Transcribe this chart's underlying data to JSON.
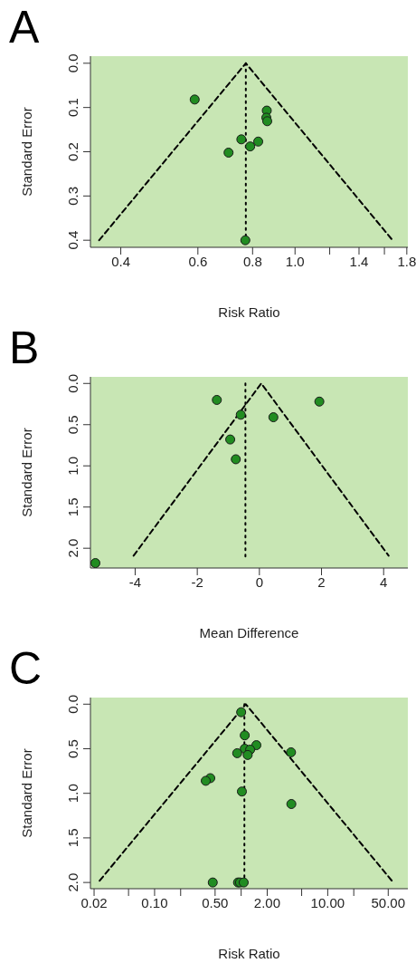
{
  "chart_data": [
    {
      "type": "scatter",
      "title": "A",
      "xlabel": "Risk Ratio",
      "ylabel": "Standard Error",
      "log": "x",
      "marker": "circle",
      "grid": false,
      "xlim": [
        0.341,
        1.81
      ],
      "ylim": [
        0.416,
        -0.016
      ],
      "xticks": [
        0.4,
        0.6,
        0.8,
        {
          "value": 1,
          "label": "1.0"
        },
        {
          "value": 1.2,
          "label": null
        },
        1.4,
        {
          "value": 1.6,
          "label": null
        },
        1.8
      ],
      "yticks": [
        {
          "value": 0,
          "label": "0.0"
        },
        0.1,
        0.2,
        0.3,
        0.4
      ],
      "series": [
        {
          "type": "line",
          "marker": "none",
          "color": "#000000",
          "line_style": "dashed",
          "x": [
            0.357,
            0.772,
            1.67
          ],
          "values": [
            0.4,
            0,
            0.4
          ]
        },
        {
          "type": "line",
          "marker": "none",
          "color": "#000000",
          "line_style": "dotted",
          "x": [
            0.772,
            0.772
          ],
          "values": [
            0,
            0.4
          ]
        },
        {
          "color": "#218c21",
          "x": [
            0.59,
            0.862,
            0.86,
            0.864,
            0.754,
            0.824,
            0.79,
            0.705,
            0.77
          ],
          "values": [
            0.082,
            0.107,
            0.123,
            0.131,
            0.172,
            0.177,
            0.188,
            0.202,
            0.4
          ]
        }
      ]
    },
    {
      "type": "scatter",
      "title": "B",
      "xlabel": "Mean Difference",
      "ylabel": "Standard Error",
      "marker": "circle",
      "grid": false,
      "xlim": [
        -5.44,
        4.78
      ],
      "ylim": [
        2.24,
        -0.08
      ],
      "xticks": [
        -4,
        -2,
        0,
        2,
        4
      ],
      "yticks": [
        {
          "value": 0,
          "label": "0.0"
        },
        0.5,
        {
          "value": 1,
          "label": "1.0"
        },
        1.5,
        {
          "value": 2,
          "label": "2.0"
        }
      ],
      "series": [
        {
          "type": "line",
          "marker": "none",
          "color": "#000000",
          "line_style": "dashed",
          "x": [
            -4.05,
            0.06,
            4.16
          ],
          "values": [
            2.09,
            0,
            2.09
          ]
        },
        {
          "type": "line",
          "marker": "none",
          "color": "#000000",
          "line_style": "dotted",
          "x": [
            -0.45,
            -0.45
          ],
          "values": [
            0,
            2.12
          ]
        },
        {
          "color": "#218c21",
          "x": [
            -1.37,
            1.93,
            -0.6,
            0.45,
            -0.94,
            -0.76,
            -5.28
          ],
          "values": [
            0.2,
            0.22,
            0.38,
            0.41,
            0.68,
            0.92,
            2.18
          ]
        }
      ]
    },
    {
      "type": "scatter",
      "title": "C",
      "xlabel": "Risk Ratio",
      "ylabel": "Standard Error",
      "log": "x",
      "marker": "circle",
      "grid": false,
      "xlim": [
        0.01815,
        84.3
      ],
      "ylim": [
        2.07,
        -0.074
      ],
      "xticks": [
        0.02,
        {
          "value": 0.05,
          "label": null
        },
        {
          "value": 0.1,
          "label": "0.10"
        },
        {
          "value": 0.2,
          "label": null
        },
        {
          "value": 0.5,
          "label": "0.50"
        },
        {
          "value": 1,
          "label": null
        },
        {
          "value": 2,
          "label": "2.00"
        },
        {
          "value": 5,
          "label": null
        },
        {
          "value": 10,
          "label": "10.00"
        },
        {
          "value": 20,
          "label": null
        },
        {
          "value": 50,
          "label": "50.00"
        }
      ],
      "yticks": [
        {
          "value": 0,
          "label": "0.0"
        },
        0.5,
        {
          "value": 1,
          "label": "1.0"
        },
        1.5,
        {
          "value": 2,
          "label": "2.0"
        }
      ],
      "series": [
        {
          "type": "line",
          "marker": "none",
          "color": "#000000",
          "line_style": "dashed",
          "x": [
            0.0232,
            1.13,
            55
          ],
          "values": [
            1.98,
            0,
            1.98
          ]
        },
        {
          "type": "line",
          "marker": "none",
          "color": "#000000",
          "line_style": "dotted",
          "x": [
            1.09,
            1.09
          ],
          "values": [
            0,
            2.0
          ]
        },
        {
          "color": "#218c21",
          "x": [
            1.0,
            1.1,
            1.5,
            1.1,
            1.27,
            0.9,
            1.19,
            3.77,
            0.44,
            0.39,
            1.02,
            3.8,
            0.47,
            0.92,
            0.97,
            1.07
          ],
          "values": [
            0.09,
            0.35,
            0.46,
            0.5,
            0.51,
            0.55,
            0.57,
            0.54,
            0.83,
            0.86,
            0.98,
            1.12,
            2.0,
            2.0,
            2.0,
            2.0
          ]
        }
      ]
    }
  ]
}
